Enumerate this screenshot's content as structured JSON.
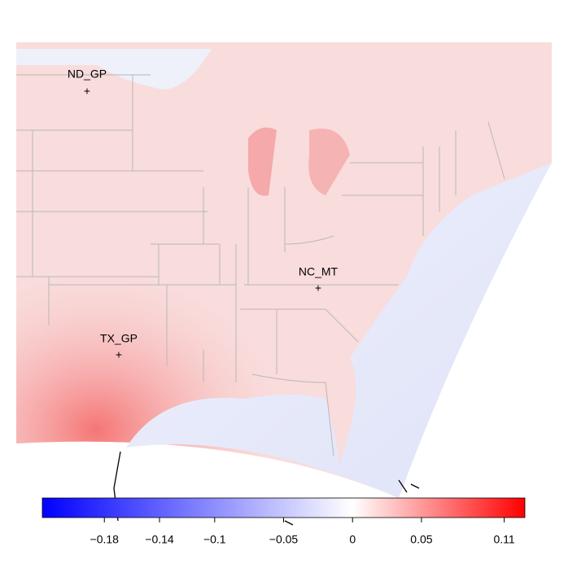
{
  "sites": [
    {
      "name": "ND_GP"
    },
    {
      "name": "NC_MT"
    },
    {
      "name": "TX_GP"
    }
  ],
  "colorbar": {
    "limits": [
      -0.225,
      0.125
    ],
    "low_color": "#0000ff",
    "mid_color": "#ffffff",
    "high_color": "#ff0000",
    "ticks": [
      {
        "value": -0.18,
        "label": "−0.18"
      },
      {
        "value": -0.14,
        "label": "−0.14"
      },
      {
        "value": -0.1,
        "label": "−0.1"
      },
      {
        "value": -0.05,
        "label": "−0.05"
      },
      0,
      0.05,
      0.11
    ]
  }
}
